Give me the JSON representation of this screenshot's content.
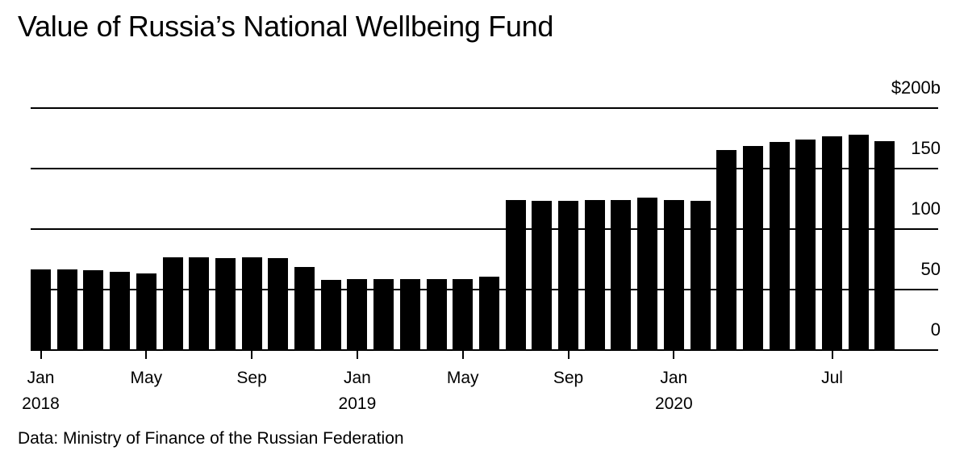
{
  "title": "Value of Russia’s National Wellbeing Fund",
  "source": "Data: Ministry of Finance of the Russian Federation",
  "colors": {
    "bar": "#000000",
    "grid": "#000000",
    "background": "#ffffff"
  },
  "chart_data": {
    "type": "bar",
    "title": "Value of Russia’s National Wellbeing Fund",
    "xlabel": "",
    "ylabel": "$ billions",
    "ylim": [
      0,
      200
    ],
    "grid": true,
    "legend": null,
    "y_ticks": [
      {
        "value": 0,
        "label": "0"
      },
      {
        "value": 50,
        "label": "50"
      },
      {
        "value": 100,
        "label": "100"
      },
      {
        "value": 150,
        "label": "150"
      },
      {
        "value": 200,
        "label": "$200b"
      }
    ],
    "x_ticks": [
      {
        "index": 0,
        "label": "Jan",
        "sub": "2018"
      },
      {
        "index": 4,
        "label": "May",
        "sub": ""
      },
      {
        "index": 8,
        "label": "Sep",
        "sub": ""
      },
      {
        "index": 12,
        "label": "Jan",
        "sub": "2019"
      },
      {
        "index": 16,
        "label": "May",
        "sub": ""
      },
      {
        "index": 20,
        "label": "Sep",
        "sub": ""
      },
      {
        "index": 24,
        "label": "Jan",
        "sub": "2020"
      },
      {
        "index": 30,
        "label": "Jul",
        "sub": ""
      }
    ],
    "categories": [
      "2018-01",
      "2018-02",
      "2018-03",
      "2018-04",
      "2018-05",
      "2018-06",
      "2018-07",
      "2018-08",
      "2018-09",
      "2018-10",
      "2018-11",
      "2018-12",
      "2019-01",
      "2019-02",
      "2019-03",
      "2019-04",
      "2019-05",
      "2019-06",
      "2019-07",
      "2019-08",
      "2019-09",
      "2019-10",
      "2019-11",
      "2019-12",
      "2020-01",
      "2020-02",
      "2020-03",
      "2020-04",
      "2020-05",
      "2020-06",
      "2020-07",
      "2020-08",
      "2020-09"
    ],
    "values": [
      67,
      67,
      66,
      65,
      63.5,
      77,
      77,
      76,
      77,
      76,
      69,
      58,
      59,
      59,
      59,
      59,
      59,
      60.5,
      124,
      123.5,
      123.5,
      124,
      124,
      126,
      124,
      123.5,
      165.5,
      169,
      172,
      174,
      176.5,
      178,
      173
    ]
  }
}
